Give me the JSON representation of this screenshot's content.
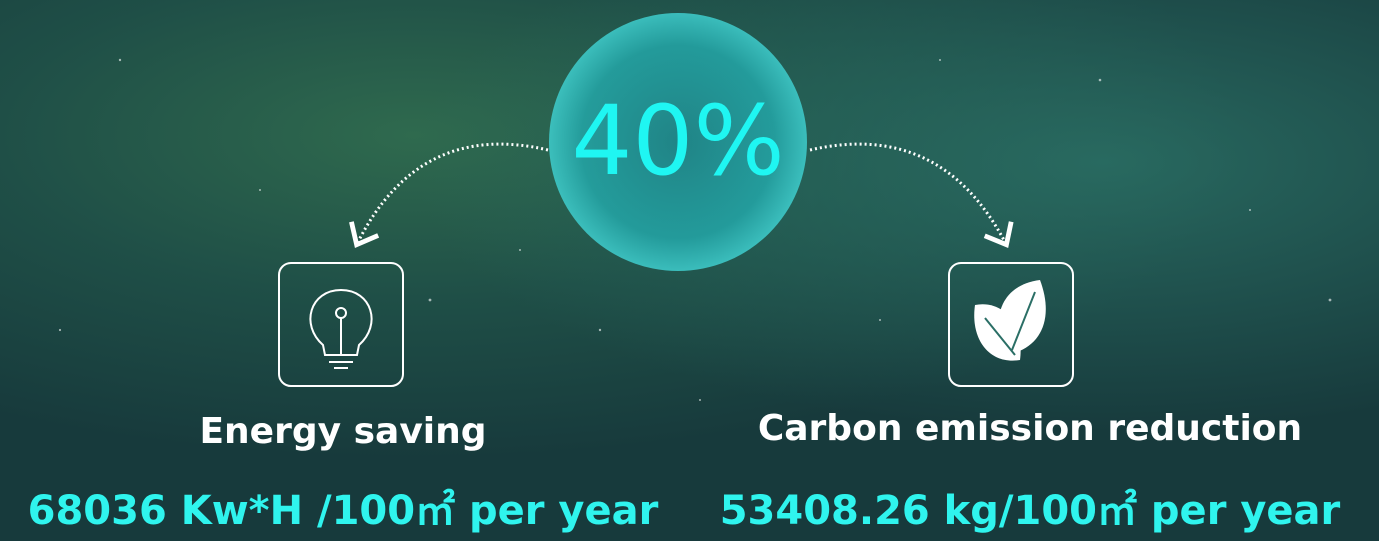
{
  "center": {
    "value": "40%"
  },
  "items": [
    {
      "label": "Energy saving",
      "value": "68036 Kw*H /100㎡ per year"
    },
    {
      "label": "Carbon emission reduction",
      "value": "53408.26 kg/100㎡ per year"
    }
  ]
}
